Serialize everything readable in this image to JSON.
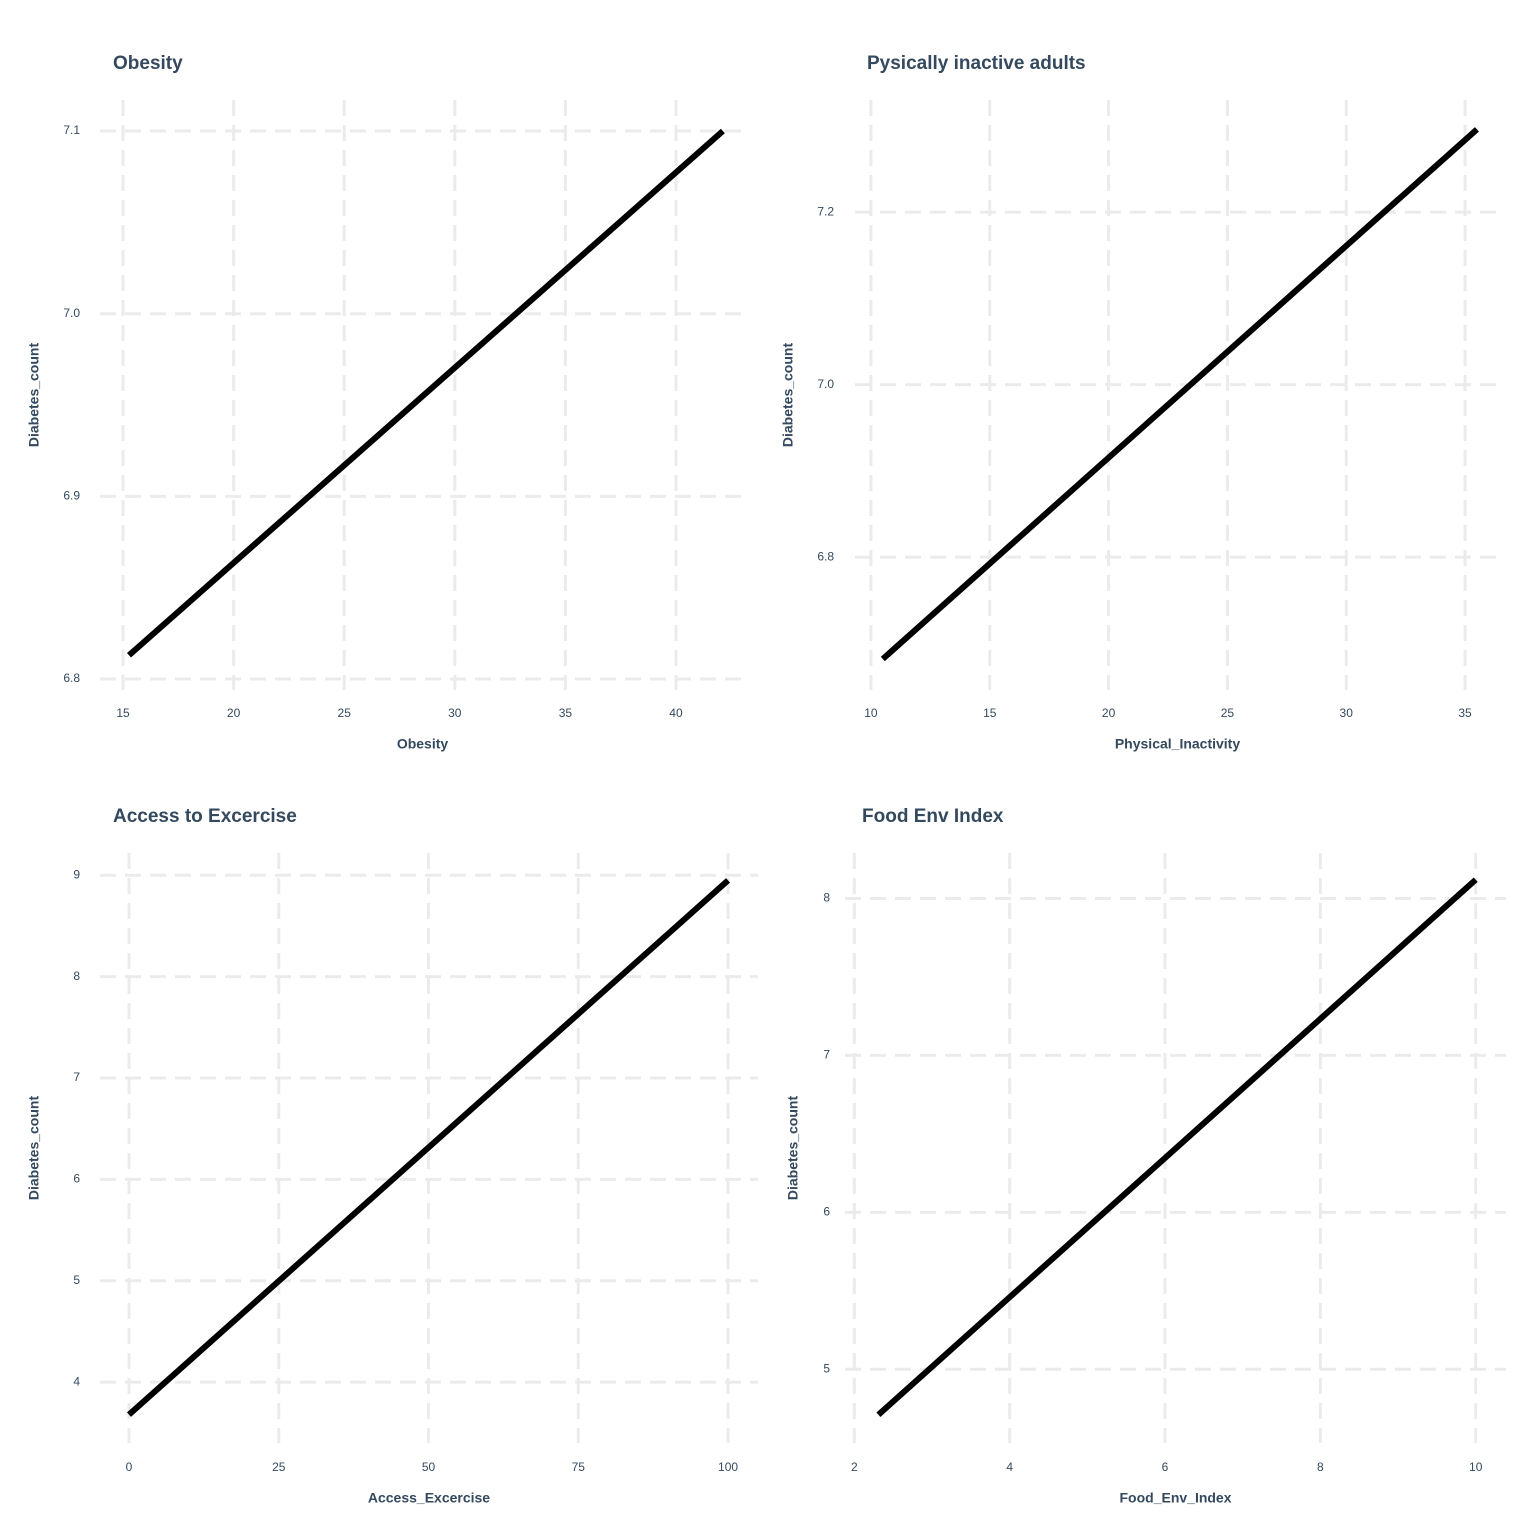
{
  "chart_data": [
    {
      "type": "line",
      "title": "Obesity",
      "xlabel": "Obesity",
      "ylabel": "Diabetes_count",
      "x": [
        15.27,
        42.12
      ],
      "values": [
        6.813,
        7.1
      ],
      "color": "#000000",
      "xlim": [
        13.96,
        43.12
      ],
      "ylim": [
        6.794,
        7.117
      ],
      "xticks": [
        15,
        20,
        25,
        30,
        35,
        40
      ],
      "yticks": [
        6.8,
        6.9,
        {
          "value": 7,
          "label": "7.0"
        },
        7.1
      ],
      "grid": true
    },
    {
      "type": "line",
      "title": "Pysically inactive adults",
      "xlabel": "Physical_Inactivity",
      "ylabel": "Diabetes_count",
      "x": [
        10.5,
        35.5
      ],
      "values": [
        6.682,
        7.296
      ],
      "color": "#000000",
      "xlim": [
        9.33,
        36.47
      ],
      "ylim": [
        6.646,
        7.33
      ],
      "xticks": [
        10,
        15,
        20,
        25,
        30,
        35
      ],
      "yticks": [
        6.8,
        {
          "value": 7,
          "label": "7.0"
        },
        7.2
      ],
      "grid": true
    },
    {
      "type": "line",
      "title": "Access to Excercise",
      "xlabel": "Access_Excercise",
      "ylabel": "Diabetes_count",
      "x": [
        0,
        100
      ],
      "values": [
        3.68,
        8.95
      ],
      "color": "#000000",
      "xlim": [
        -4.84,
        105
      ],
      "ylim": [
        3.4,
        9.22
      ],
      "xticks": [
        0,
        25,
        50,
        75,
        100
      ],
      "yticks": [
        4,
        5,
        6,
        7,
        8,
        9
      ],
      "grid": true
    },
    {
      "type": "line",
      "title": "Food Env Index",
      "xlabel": "Food_Env_Index",
      "ylabel": "Diabetes_count",
      "x": [
        2.31,
        10
      ],
      "values": [
        4.71,
        8.12
      ],
      "color": "#000000",
      "xlim": [
        1.88,
        10.39
      ],
      "ylim": [
        4.53,
        8.29
      ],
      "xticks": [
        2,
        4,
        6,
        8,
        10
      ],
      "yticks": [
        5,
        6,
        7,
        8
      ],
      "grid": true
    }
  ]
}
